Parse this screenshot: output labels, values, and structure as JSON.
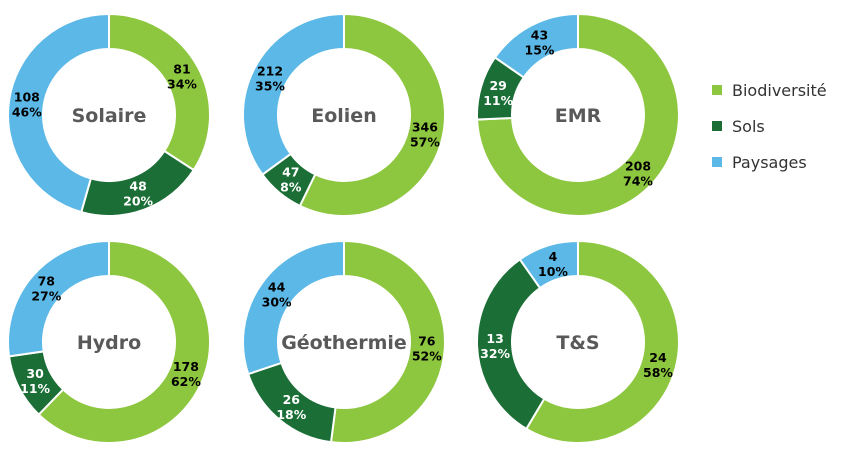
{
  "colors": {
    "biodiversite": "#8DC63F",
    "sols": "#1B6E36",
    "paysages": "#5CB8E6"
  },
  "legend": [
    {
      "label": "Biodiversité",
      "color": "#8DC63F"
    },
    {
      "label": "Sols",
      "color": "#1B6E36"
    },
    {
      "label": "Paysages",
      "color": "#5CB8E6"
    }
  ],
  "chart_data": [
    {
      "type": "pie",
      "title": "Solaire",
      "series": [
        {
          "name": "Biodiversité",
          "value": 81,
          "pct": "34%"
        },
        {
          "name": "Sols",
          "value": 48,
          "pct": "20%"
        },
        {
          "name": "Paysages",
          "value": 108,
          "pct": "46%"
        }
      ]
    },
    {
      "type": "pie",
      "title": "Eolien",
      "series": [
        {
          "name": "Biodiversité",
          "value": 346,
          "pct": "57%"
        },
        {
          "name": "Sols",
          "value": 47,
          "pct": "8%"
        },
        {
          "name": "Paysages",
          "value": 212,
          "pct": "35%"
        }
      ]
    },
    {
      "type": "pie",
      "title": "EMR",
      "series": [
        {
          "name": "Biodiversité",
          "value": 208,
          "pct": "74%"
        },
        {
          "name": "Sols",
          "value": 29,
          "pct": "11%"
        },
        {
          "name": "Paysages",
          "value": 43,
          "pct": "15%"
        }
      ]
    },
    {
      "type": "pie",
      "title": "Hydro",
      "series": [
        {
          "name": "Biodiversité",
          "value": 178,
          "pct": "62%"
        },
        {
          "name": "Sols",
          "value": 30,
          "pct": "11%"
        },
        {
          "name": "Paysages",
          "value": 78,
          "pct": "27%"
        }
      ]
    },
    {
      "type": "pie",
      "title": "Géothermie",
      "series": [
        {
          "name": "Biodiversité",
          "value": 76,
          "pct": "52%"
        },
        {
          "name": "Sols",
          "value": 26,
          "pct": "18%"
        },
        {
          "name": "Paysages",
          "value": 44,
          "pct": "30%"
        }
      ]
    },
    {
      "type": "pie",
      "title": "T&S",
      "series": [
        {
          "name": "Biodiversité",
          "value": 24,
          "pct": "58%"
        },
        {
          "name": "Sols",
          "value": 13,
          "pct": "32%"
        },
        {
          "name": "Paysages",
          "value": 4,
          "pct": "10%"
        }
      ]
    }
  ]
}
